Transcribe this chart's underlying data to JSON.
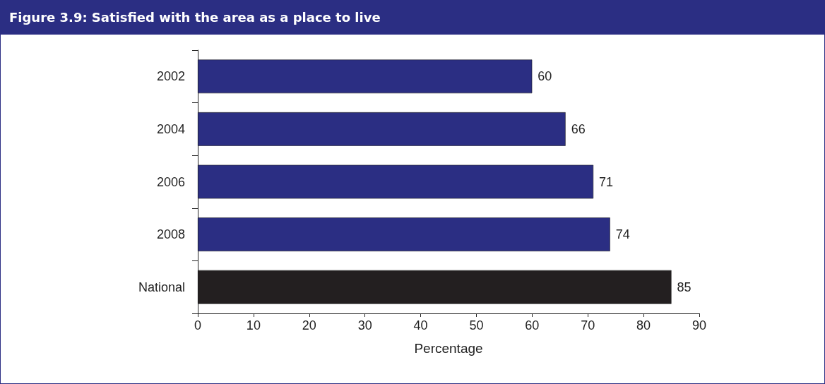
{
  "chart_data": {
    "type": "bar",
    "orientation": "horizontal",
    "title": "Figure 3.9:  Satisfied with the area as a place to live",
    "xlabel": "Percentage",
    "categories": [
      "2002",
      "2004",
      "2006",
      "2008",
      "National"
    ],
    "values": [
      60,
      66,
      71,
      74,
      85
    ],
    "colors": [
      "#2b2e83",
      "#2b2e83",
      "#2b2e83",
      "#2b2e83",
      "#231f20"
    ],
    "xlim": [
      0,
      90
    ],
    "xticks": [
      0,
      10,
      20,
      30,
      40,
      50,
      60,
      70,
      80,
      90
    ],
    "data_labels": true
  }
}
